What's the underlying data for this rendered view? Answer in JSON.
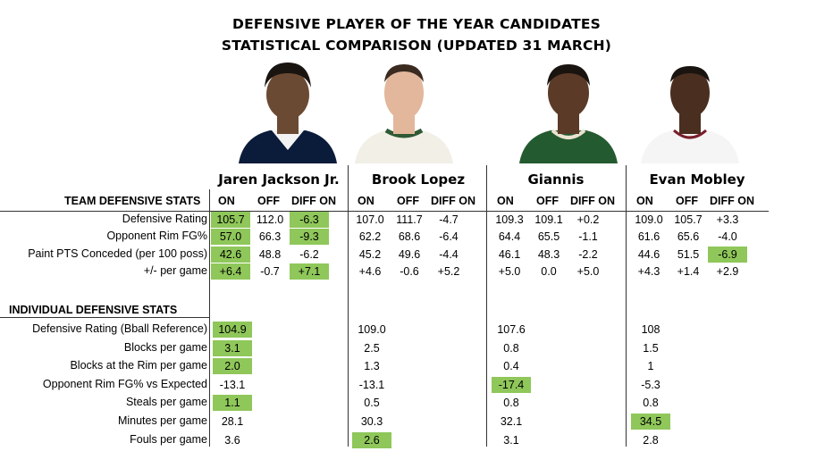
{
  "title_line1": "DEFENSIVE PLAYER OF THE YEAR CANDIDATES",
  "title_line2": "STATISTICAL COMPARISON (UPDATED 31 MARCH)",
  "players": [
    {
      "name": "Jaren Jackson Jr.",
      "jersey": "navy",
      "skin": "#6b4a34"
    },
    {
      "name": "Brook Lopez",
      "jersey": "white-green",
      "skin": "#e2b79c"
    },
    {
      "name": "Giannis",
      "jersey": "green",
      "skin": "#5b3b27"
    },
    {
      "name": "Evan Mobley",
      "jersey": "white",
      "skin": "#4a2e1f"
    }
  ],
  "team_section": {
    "label": "TEAM DEFENSIVE STATS",
    "col_headers": [
      "ON",
      "OFF",
      "DIFF ON"
    ],
    "rows": [
      {
        "label": "Defensive Rating",
        "values": [
          [
            "105.7",
            "112.0",
            "-6.3"
          ],
          [
            "107.0",
            "111.7",
            "-4.7"
          ],
          [
            "109.3",
            "109.1",
            "+0.2"
          ],
          [
            "109.0",
            "105.7",
            "+3.3"
          ]
        ]
      },
      {
        "label": "Opponent Rim FG%",
        "values": [
          [
            "57.0",
            "66.3",
            "-9.3"
          ],
          [
            "62.2",
            "68.6",
            "-6.4"
          ],
          [
            "64.4",
            "65.5",
            "-1.1"
          ],
          [
            "61.6",
            "65.6",
            "-4.0"
          ]
        ]
      },
      {
        "label": "Paint PTS Conceded (per 100 poss)",
        "values": [
          [
            "42.6",
            "48.8",
            "-6.2"
          ],
          [
            "45.2",
            "49.6",
            "-4.4"
          ],
          [
            "46.1",
            "48.3",
            "-2.2"
          ],
          [
            "44.6",
            "51.5",
            "-6.9"
          ]
        ]
      },
      {
        "label": "+/- per game",
        "values": [
          [
            "+6.4",
            "-0.7",
            "+7.1"
          ],
          [
            "+4.6",
            "-0.6",
            "+5.2"
          ],
          [
            "+5.0",
            "0.0",
            "+5.0"
          ],
          [
            "+4.3",
            "+1.4",
            "+2.9"
          ]
        ]
      }
    ]
  },
  "individual_section": {
    "label": "INDIVIDUAL DEFENSIVE STATS",
    "rows": [
      {
        "label": "Defensive Rating (Bball Reference)",
        "values": [
          "104.9",
          "109.0",
          "107.6",
          "108"
        ]
      },
      {
        "label": "Blocks per game",
        "values": [
          "3.1",
          "2.5",
          "0.8",
          "1.5"
        ]
      },
      {
        "label": "Blocks at the Rim per game",
        "values": [
          "2.0",
          "1.3",
          "0.4",
          "1"
        ]
      },
      {
        "label": "Opponent Rim FG% vs Expected",
        "values": [
          "-13.1",
          "-13.1",
          "-17.4",
          "-5.3"
        ]
      },
      {
        "label": "Steals per game",
        "values": [
          "1.1",
          "0.5",
          "0.8",
          "0.8"
        ]
      },
      {
        "label": "Minutes per game",
        "values": [
          "28.1",
          "30.3",
          "32.1",
          "34.5"
        ]
      },
      {
        "label": "Fouls per game",
        "values": [
          "3.6",
          "2.6",
          "3.1",
          "2.8"
        ]
      }
    ]
  },
  "highlight_color": "#8fc75a",
  "team_highlights": [
    [
      0,
      0,
      0
    ],
    [
      0,
      0,
      2
    ],
    [
      0,
      1,
      0
    ],
    [
      0,
      1,
      2
    ],
    [
      0,
      2,
      0
    ],
    [
      3,
      2,
      2
    ],
    [
      0,
      3,
      0
    ],
    [
      0,
      3,
      2
    ]
  ],
  "individual_highlights": [
    [
      0,
      0
    ],
    [
      0,
      1
    ],
    [
      0,
      2
    ],
    [
      2,
      3
    ],
    [
      0,
      4
    ],
    [
      3,
      5
    ],
    [
      1,
      6
    ]
  ]
}
